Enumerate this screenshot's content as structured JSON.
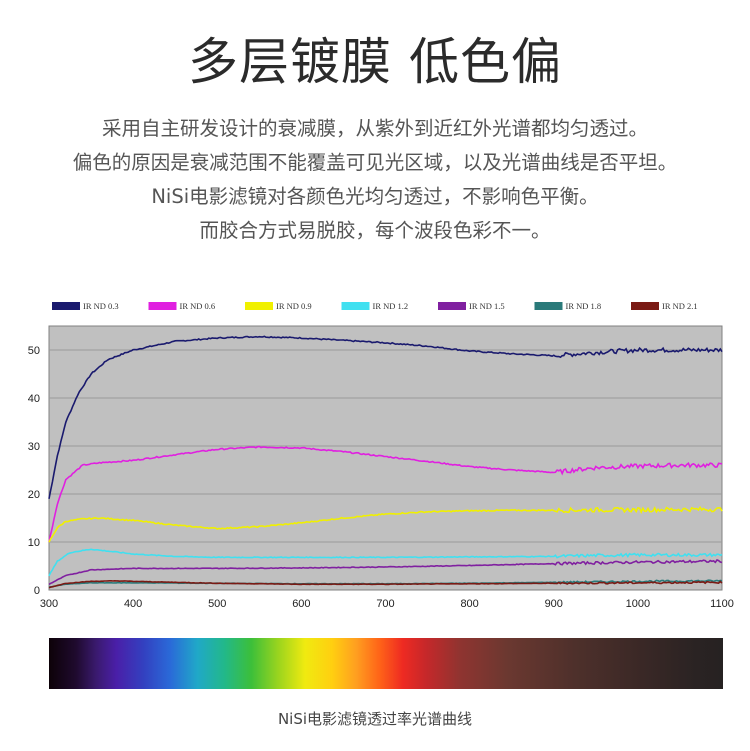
{
  "header": {
    "title": "多层镀膜 低色偏",
    "lines": [
      "采用自主研发设计的衰减膜，从紫外到近红外光谱都均匀透过。",
      "偏色的原因是衰减范围不能覆盖可见光区域，以及光谱曲线是否平坦。",
      "NiSi电影滤镜对各颜色光均匀透过，不影响色平衡。",
      "而胶合方式易脱胶，每个波段色彩不一。"
    ]
  },
  "caption": "NiSi电影滤镜透过率光谱曲线",
  "chart_data": {
    "type": "line",
    "title": "",
    "xlabel": "",
    "ylabel": "",
    "xlim": [
      300,
      1100
    ],
    "ylim": [
      0,
      55
    ],
    "x_ticks": [
      "300",
      "400",
      "500",
      "600",
      "700",
      "800",
      "900",
      "1000",
      "1100"
    ],
    "y_ticks": [
      "0",
      "10",
      "20",
      "30",
      "40",
      "50"
    ],
    "grid": "horizontal",
    "plot_background": "#c0c0c0",
    "legend_position": "top",
    "series": [
      {
        "name": "IR ND 0.3",
        "color": "#1a1a6e",
        "points": [
          [
            300,
            19
          ],
          [
            310,
            28
          ],
          [
            320,
            35
          ],
          [
            335,
            41
          ],
          [
            350,
            45
          ],
          [
            370,
            48
          ],
          [
            400,
            50
          ],
          [
            450,
            51.8
          ],
          [
            500,
            52.5
          ],
          [
            550,
            52.8
          ],
          [
            600,
            52.5
          ],
          [
            650,
            52
          ],
          [
            700,
            51.5
          ],
          [
            750,
            50.8
          ],
          [
            800,
            49.8
          ],
          [
            850,
            49.2
          ],
          [
            900,
            48.8
          ],
          [
            950,
            49.5
          ],
          [
            1000,
            50
          ],
          [
            1050,
            50
          ],
          [
            1100,
            50
          ]
        ]
      },
      {
        "name": "IR ND 0.6",
        "color": "#e020e0",
        "points": [
          [
            300,
            10
          ],
          [
            310,
            18
          ],
          [
            320,
            23
          ],
          [
            340,
            26
          ],
          [
            360,
            26.5
          ],
          [
            400,
            27
          ],
          [
            450,
            28.2
          ],
          [
            500,
            29.3
          ],
          [
            550,
            29.8
          ],
          [
            600,
            29.6
          ],
          [
            650,
            28.8
          ],
          [
            700,
            27.8
          ],
          [
            750,
            26.8
          ],
          [
            800,
            25.7
          ],
          [
            850,
            25
          ],
          [
            900,
            24.5
          ],
          [
            950,
            25.5
          ],
          [
            1000,
            25.8
          ],
          [
            1050,
            26
          ],
          [
            1100,
            26
          ]
        ]
      },
      {
        "name": "IR ND 0.9",
        "color": "#f0f000",
        "points": [
          [
            300,
            10
          ],
          [
            310,
            13
          ],
          [
            320,
            14.3
          ],
          [
            340,
            14.8
          ],
          [
            360,
            15
          ],
          [
            400,
            14.5
          ],
          [
            450,
            13.5
          ],
          [
            500,
            12.8
          ],
          [
            550,
            13.2
          ],
          [
            600,
            14
          ],
          [
            650,
            15
          ],
          [
            700,
            15.8
          ],
          [
            750,
            16.3
          ],
          [
            800,
            16.5
          ],
          [
            850,
            16.6
          ],
          [
            900,
            16.6
          ],
          [
            950,
            16.7
          ],
          [
            1000,
            16.7
          ],
          [
            1050,
            16.8
          ],
          [
            1100,
            16.8
          ]
        ]
      },
      {
        "name": "IR ND 1.2",
        "color": "#40e0f0",
        "points": [
          [
            300,
            3
          ],
          [
            310,
            6
          ],
          [
            325,
            7.8
          ],
          [
            350,
            8.5
          ],
          [
            375,
            8
          ],
          [
            400,
            7.5
          ],
          [
            450,
            7
          ],
          [
            500,
            6.8
          ],
          [
            600,
            6.8
          ],
          [
            700,
            6.8
          ],
          [
            800,
            6.9
          ],
          [
            900,
            7
          ],
          [
            950,
            7.2
          ],
          [
            1000,
            7.3
          ],
          [
            1100,
            7.3
          ]
        ]
      },
      {
        "name": "IR ND 1.5",
        "color": "#8020a0",
        "points": [
          [
            300,
            1.2
          ],
          [
            320,
            3
          ],
          [
            350,
            4.2
          ],
          [
            400,
            4.5
          ],
          [
            450,
            4.5
          ],
          [
            500,
            4.5
          ],
          [
            600,
            4.6
          ],
          [
            700,
            4.8
          ],
          [
            800,
            5.1
          ],
          [
            900,
            5.5
          ],
          [
            1000,
            5.8
          ],
          [
            1100,
            6
          ]
        ]
      },
      {
        "name": "IR ND 1.8",
        "color": "#2a7a7a",
        "points": [
          [
            300,
            0.6
          ],
          [
            320,
            1.2
          ],
          [
            350,
            1.5
          ],
          [
            400,
            1.5
          ],
          [
            500,
            1.4
          ],
          [
            600,
            1.3
          ],
          [
            700,
            1.3
          ],
          [
            800,
            1.4
          ],
          [
            900,
            1.6
          ],
          [
            1000,
            1.8
          ],
          [
            1100,
            1.9
          ]
        ]
      },
      {
        "name": "IR ND 2.1",
        "color": "#7a1a14",
        "points": [
          [
            300,
            0.5
          ],
          [
            320,
            1.4
          ],
          [
            350,
            1.8
          ],
          [
            380,
            1.9
          ],
          [
            400,
            1.8
          ],
          [
            450,
            1.6
          ],
          [
            500,
            1.4
          ],
          [
            600,
            1.2
          ],
          [
            700,
            1.2
          ],
          [
            800,
            1.3
          ],
          [
            900,
            1.4
          ],
          [
            1000,
            1.5
          ],
          [
            1100,
            1.6
          ]
        ]
      }
    ]
  }
}
